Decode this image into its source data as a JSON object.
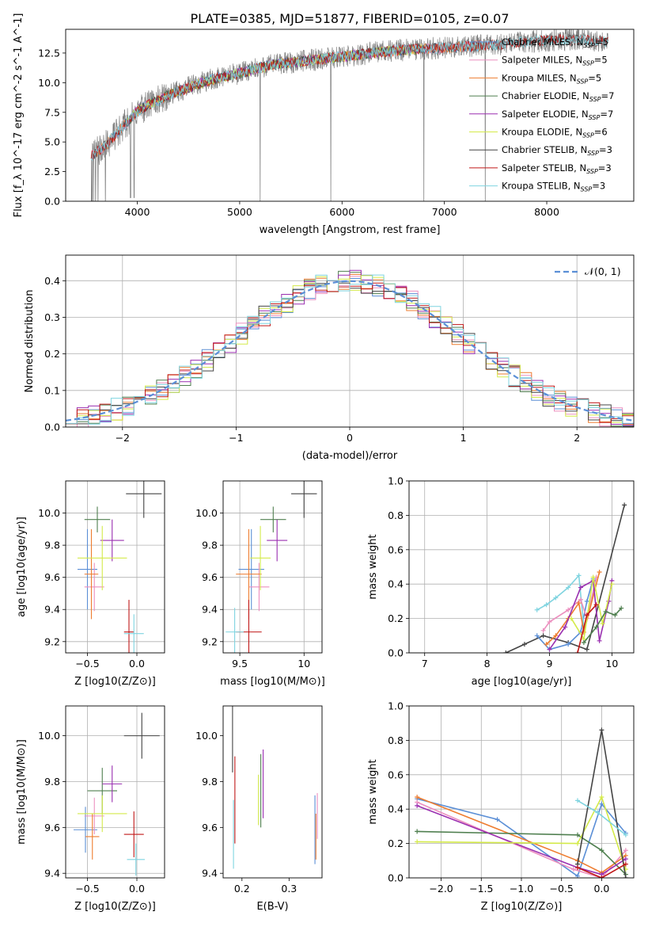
{
  "figure_title": "PLATE=0385, MJD=51877, FIBERID=0105, z=0.07",
  "colors": {
    "chabrier_miles": "#5b8fd6",
    "salpeter_miles": "#ec8fbf",
    "kroupa_miles": "#ee7d30",
    "chabrier_elodie": "#4f7f4f",
    "salpeter_elodie": "#9a2fb0",
    "kroupa_elodie": "#d4ea4a",
    "chabrier_stelib": "#444444",
    "salpeter_stelib": "#c01818",
    "kroupa_stelib": "#7fd4e0",
    "data": "#7f7f7f"
  },
  "chart_data": [
    {
      "id": "spectrum",
      "type": "line",
      "title": "PLATE=0385, MJD=51877, FIBERID=0105, z=0.07",
      "xlabel": "wavelength [Angstrom, rest frame]",
      "ylabel": "Flux [f_λ 10^-17 erg cm^-2 s^-1 A^-1]",
      "xlim": [
        3300,
        8850
      ],
      "ylim": [
        0,
        14.5
      ],
      "xticks": [
        4000,
        5000,
        6000,
        7000,
        8000
      ],
      "yticks": [
        0.0,
        2.5,
        5.0,
        7.5,
        10.0,
        12.5
      ],
      "grid": false,
      "legend": "upper right",
      "continuum": {
        "x": [
          3550,
          3700,
          3850,
          4000,
          4150,
          4300,
          4500,
          4700,
          4900,
          5100,
          5300,
          5500,
          5700,
          5900,
          6100,
          6300,
          6500,
          6700,
          6900,
          7100,
          7300,
          7500,
          7700,
          7900,
          8100,
          8300,
          8500
        ],
        "y": [
          3.8,
          4.8,
          6.2,
          7.6,
          8.3,
          8.9,
          9.6,
          10.2,
          10.6,
          11.0,
          11.5,
          11.7,
          11.9,
          12.1,
          12.3,
          12.5,
          12.7,
          12.8,
          12.9,
          13.0,
          13.1,
          13.2,
          13.4,
          13.5,
          13.6,
          13.6,
          13.5
        ]
      },
      "series": [
        {
          "name": "Chabrier MILES",
          "n_ssp": "5",
          "xrange": [
            3550,
            7400
          ]
        },
        {
          "name": "Salpeter MILES",
          "n_ssp": "5",
          "xrange": [
            3550,
            7400
          ]
        },
        {
          "name": "Kroupa MILES",
          "n_ssp": "5",
          "xrange": [
            3550,
            7400
          ]
        },
        {
          "name": "Chabrier ELODIE",
          "n_ssp": "7",
          "xrange": [
            3900,
            6800
          ]
        },
        {
          "name": "Salpeter ELODIE",
          "n_ssp": "7",
          "xrange": [
            3900,
            6800
          ]
        },
        {
          "name": "Kroupa ELODIE",
          "n_ssp": "6",
          "xrange": [
            3900,
            6800
          ]
        },
        {
          "name": "Chabrier STELIB",
          "n_ssp": "3",
          "xrange": [
            3550,
            8600
          ]
        },
        {
          "name": "Salpeter STELIB",
          "n_ssp": "3",
          "xrange": [
            3550,
            8600
          ]
        },
        {
          "name": "Kroupa STELIB",
          "n_ssp": "3",
          "xrange": [
            3550,
            8600
          ]
        }
      ]
    },
    {
      "id": "residuals",
      "type": "line",
      "xlabel": "(data-model)/error",
      "ylabel": "Normed distribution",
      "xlim": [
        -2.5,
        2.5
      ],
      "ylim": [
        0,
        0.47
      ],
      "xticks": [
        -2,
        -1,
        0,
        1,
        2
      ],
      "yticks": [
        0.0,
        0.1,
        0.2,
        0.3,
        0.4
      ],
      "grid": true,
      "legend": "upper right",
      "reference_curve": {
        "name": "𝒩(0, 1)",
        "mean": 0,
        "sigma": 1
      },
      "bin_width": 0.1
    },
    {
      "id": "age_vs_Z",
      "type": "scatter",
      "xlabel": "Z [log10(Z/Z⊙)]",
      "ylabel": "age  [log10(age/yr)]",
      "xlim": [
        -0.72,
        0.28
      ],
      "ylim": [
        9.13,
        10.2
      ],
      "xticks": [
        -0.5,
        0.0
      ],
      "xticklabels": [
        "−0.5",
        "0.0"
      ],
      "yticks": [
        9.2,
        9.4,
        9.6,
        9.8,
        10.0
      ],
      "grid": true,
      "points": [
        {
          "x": -0.5,
          "xerr": 0.1,
          "y": 9.65,
          "yerr": 0.25
        },
        {
          "x": -0.43,
          "xerr": 0.1,
          "y": 9.54,
          "yerr": 0.15
        },
        {
          "x": -0.46,
          "xerr": 0.07,
          "y": 9.62,
          "yerr": 0.28
        },
        {
          "x": -0.4,
          "xerr": 0.13,
          "y": 9.96,
          "yerr": 0.08
        },
        {
          "x": -0.25,
          "xerr": 0.12,
          "y": 9.83,
          "yerr": 0.13
        },
        {
          "x": -0.35,
          "xerr": 0.25,
          "y": 9.72,
          "yerr": 0.2
        },
        {
          "x": 0.07,
          "xerr": 0.18,
          "y": 10.12,
          "yerr": 0.15
        },
        {
          "x": -0.08,
          "xerr": 0.05,
          "y": 9.26,
          "yerr": 0.2
        },
        {
          "x": -0.03,
          "xerr": 0.1,
          "y": 9.25,
          "yerr": 0.12
        }
      ]
    },
    {
      "id": "age_vs_mass",
      "type": "scatter",
      "xlabel": "mass [log10(M/M⊙)]",
      "ylabel": "",
      "xlim": [
        9.37,
        10.14
      ],
      "ylim": [
        9.13,
        10.2
      ],
      "xticks": [
        9.5,
        10.0
      ],
      "yticks": [
        9.2,
        9.4,
        9.6,
        9.8,
        10.0
      ],
      "grid": true,
      "points": [
        {
          "x": 9.59,
          "xerr": 0.1,
          "y": 9.65,
          "yerr": 0.25
        },
        {
          "x": 9.65,
          "xerr": 0.08,
          "y": 9.54,
          "yerr": 0.15
        },
        {
          "x": 9.57,
          "xerr": 0.1,
          "y": 9.62,
          "yerr": 0.28
        },
        {
          "x": 9.76,
          "xerr": 0.1,
          "y": 9.96,
          "yerr": 0.08
        },
        {
          "x": 9.79,
          "xerr": 0.08,
          "y": 9.83,
          "yerr": 0.13
        },
        {
          "x": 9.66,
          "xerr": 0.08,
          "y": 9.72,
          "yerr": 0.2
        },
        {
          "x": 10.0,
          "xerr": 0.1,
          "y": 10.12,
          "yerr": 0.15
        },
        {
          "x": 9.57,
          "xerr": 0.1,
          "y": 9.26,
          "yerr": 0.2
        },
        {
          "x": 9.46,
          "xerr": 0.07,
          "y": 9.26,
          "yerr": 0.15
        }
      ]
    },
    {
      "id": "weight_vs_age",
      "type": "line",
      "xlabel": "age  [log10(age/yr)]",
      "ylabel": "mass weight",
      "xlim": [
        6.75,
        10.35
      ],
      "ylim": [
        0,
        1
      ],
      "xticks": [
        7,
        8,
        9,
        10
      ],
      "yticks": [
        0.0,
        0.2,
        0.4,
        0.6,
        0.8,
        1.0
      ],
      "grid": true,
      "series": [
        {
          "key": "chabrier_stelib",
          "x": [
            8.3,
            8.6,
            8.9,
            9.3,
            9.6,
            10.2
          ],
          "y": [
            0.0,
            0.05,
            0.1,
            0.06,
            0.02,
            0.86
          ]
        },
        {
          "key": "chabrier_miles",
          "x": [
            8.8,
            9.0,
            9.3,
            9.5,
            9.6,
            9.7
          ],
          "y": [
            0.1,
            0.02,
            0.05,
            0.12,
            0.3,
            0.43
          ]
        },
        {
          "key": "kroupa_stelib",
          "x": [
            8.8,
            8.95,
            9.1,
            9.3,
            9.47,
            9.55
          ],
          "y": [
            0.25,
            0.28,
            0.32,
            0.38,
            0.45,
            0.15
          ]
        },
        {
          "key": "salpeter_miles",
          "x": [
            8.9,
            9.0,
            9.3,
            9.5,
            9.6,
            9.75
          ],
          "y": [
            0.13,
            0.18,
            0.25,
            0.31,
            0.2,
            0.44
          ]
        },
        {
          "key": "kroupa_miles",
          "x": [
            8.95,
            9.1,
            9.3,
            9.47,
            9.55,
            9.8
          ],
          "y": [
            0.05,
            0.1,
            0.2,
            0.29,
            0.12,
            0.47
          ]
        },
        {
          "key": "salpeter_elodie",
          "x": [
            9.0,
            9.25,
            9.5,
            9.7,
            9.8,
            9.95,
            10.0
          ],
          "y": [
            0.02,
            0.15,
            0.38,
            0.42,
            0.07,
            0.3,
            0.42
          ]
        },
        {
          "key": "kroupa_elodie",
          "x": [
            9.35,
            9.55,
            9.7,
            9.85,
            10.0
          ],
          "y": [
            0.2,
            0.08,
            0.44,
            0.17,
            0.4
          ]
        },
        {
          "key": "chabrier_elodie",
          "x": [
            9.55,
            9.75,
            9.9,
            10.05,
            10.15
          ],
          "y": [
            0.06,
            0.15,
            0.24,
            0.22,
            0.26
          ]
        },
        {
          "key": "salpeter_stelib",
          "x": [
            9.45,
            9.6,
            9.75
          ],
          "y": [
            0.0,
            0.22,
            0.28
          ]
        }
      ]
    },
    {
      "id": "mass_vs_Z",
      "type": "scatter",
      "xlabel": "Z [log10(Z/Z⊙)]",
      "ylabel": "mass [log10(M/M⊙)]",
      "xlim": [
        -0.72,
        0.28
      ],
      "ylim": [
        9.38,
        10.13
      ],
      "xticks": [
        -0.5,
        0.0
      ],
      "xticklabels": [
        "−0.5",
        "0.0"
      ],
      "yticks": [
        9.4,
        9.6,
        9.8,
        10.0
      ],
      "grid": true,
      "points": [
        {
          "x": -0.52,
          "xerr": 0.12,
          "y": 9.59,
          "yerr": 0.1
        },
        {
          "x": -0.43,
          "xerr": 0.1,
          "y": 9.65,
          "yerr": 0.08
        },
        {
          "x": -0.45,
          "xerr": 0.07,
          "y": 9.56,
          "yerr": 0.1
        },
        {
          "x": -0.35,
          "xerr": 0.15,
          "y": 9.76,
          "yerr": 0.1
        },
        {
          "x": -0.25,
          "xerr": 0.1,
          "y": 9.79,
          "yerr": 0.08
        },
        {
          "x": -0.35,
          "xerr": 0.25,
          "y": 9.66,
          "yerr": 0.08
        },
        {
          "x": 0.05,
          "xerr": 0.18,
          "y": 10.0,
          "yerr": 0.1
        },
        {
          "x": -0.03,
          "xerr": 0.1,
          "y": 9.57,
          "yerr": 0.1
        },
        {
          "x": -0.01,
          "xerr": 0.09,
          "y": 9.46,
          "yerr": 0.07
        }
      ]
    },
    {
      "id": "mass_vs_ebv",
      "type": "scatter",
      "xlabel": "E(B-V)",
      "ylabel": "",
      "xlim": [
        0.16,
        0.37
      ],
      "ylim": [
        9.38,
        10.13
      ],
      "xticks": [
        0.2,
        0.3
      ],
      "yticks": [
        9.4,
        9.6,
        9.8,
        10.0
      ],
      "grid": false,
      "points": [
        {
          "x": 0.355,
          "y": 9.59,
          "yerr": 0.15
        },
        {
          "x": 0.36,
          "y": 9.65,
          "yerr": 0.1
        },
        {
          "x": 0.357,
          "y": 9.56,
          "yerr": 0.1
        },
        {
          "x": 0.24,
          "y": 9.76,
          "yerr": 0.16
        },
        {
          "x": 0.245,
          "y": 9.79,
          "yerr": 0.15
        },
        {
          "x": 0.235,
          "y": 9.72,
          "yerr": 0.11
        },
        {
          "x": 0.18,
          "y": 10.0,
          "yerr": 0.16
        },
        {
          "x": 0.185,
          "y": 9.72,
          "yerr": 0.19
        },
        {
          "x": 0.182,
          "y": 9.57,
          "yerr": 0.15
        }
      ]
    },
    {
      "id": "weight_vs_Z",
      "type": "line",
      "xlabel": "Z [log10(Z/Z⊙)]",
      "ylabel": "mass weight",
      "xlim": [
        -2.4,
        0.4
      ],
      "ylim": [
        0,
        1
      ],
      "xticks": [
        -2.0,
        -1.5,
        -1.0,
        -0.5,
        0.0
      ],
      "xticklabels": [
        "−2.0",
        "−1.5",
        "−1.0",
        "−0.5",
        "0.0"
      ],
      "yticks": [
        0.0,
        0.2,
        0.4,
        0.6,
        0.8,
        1.0
      ],
      "grid": true,
      "series": [
        {
          "key": "chabrier_miles",
          "x": [
            -2.3,
            -1.3,
            -0.3,
            0.0,
            0.3
          ],
          "y": [
            0.46,
            0.34,
            0.01,
            0.43,
            0.26
          ]
        },
        {
          "key": "salpeter_miles",
          "x": [
            -2.3,
            -0.35,
            0.0,
            0.3
          ],
          "y": [
            0.44,
            0.05,
            0.0,
            0.16
          ]
        },
        {
          "key": "kroupa_miles",
          "x": [
            -2.3,
            -0.3,
            0.0,
            0.3
          ],
          "y": [
            0.47,
            0.1,
            0.03,
            0.13
          ]
        },
        {
          "key": "chabrier_elodie",
          "x": [
            -2.3,
            -0.3,
            0.0,
            0.3
          ],
          "y": [
            0.27,
            0.25,
            0.16,
            0.02
          ]
        },
        {
          "key": "salpeter_elodie",
          "x": [
            -2.3,
            -0.3,
            0.0,
            0.3
          ],
          "y": [
            0.42,
            0.06,
            0.02,
            0.11
          ]
        },
        {
          "key": "kroupa_elodie",
          "x": [
            -2.3,
            -0.3,
            0.0,
            0.3
          ],
          "y": [
            0.21,
            0.2,
            0.47,
            0.05
          ]
        },
        {
          "key": "chabrier_stelib",
          "x": [
            -0.3,
            0.0,
            0.3
          ],
          "y": [
            0.08,
            0.86,
            0.0
          ]
        },
        {
          "key": "salpeter_stelib",
          "x": [
            -0.3,
            0.0,
            0.3
          ],
          "y": [
            0.06,
            0.0,
            0.08
          ]
        },
        {
          "key": "kroupa_stelib",
          "x": [
            -0.3,
            -0.05,
            0.3
          ],
          "y": [
            0.45,
            0.38,
            0.25
          ]
        }
      ]
    }
  ]
}
